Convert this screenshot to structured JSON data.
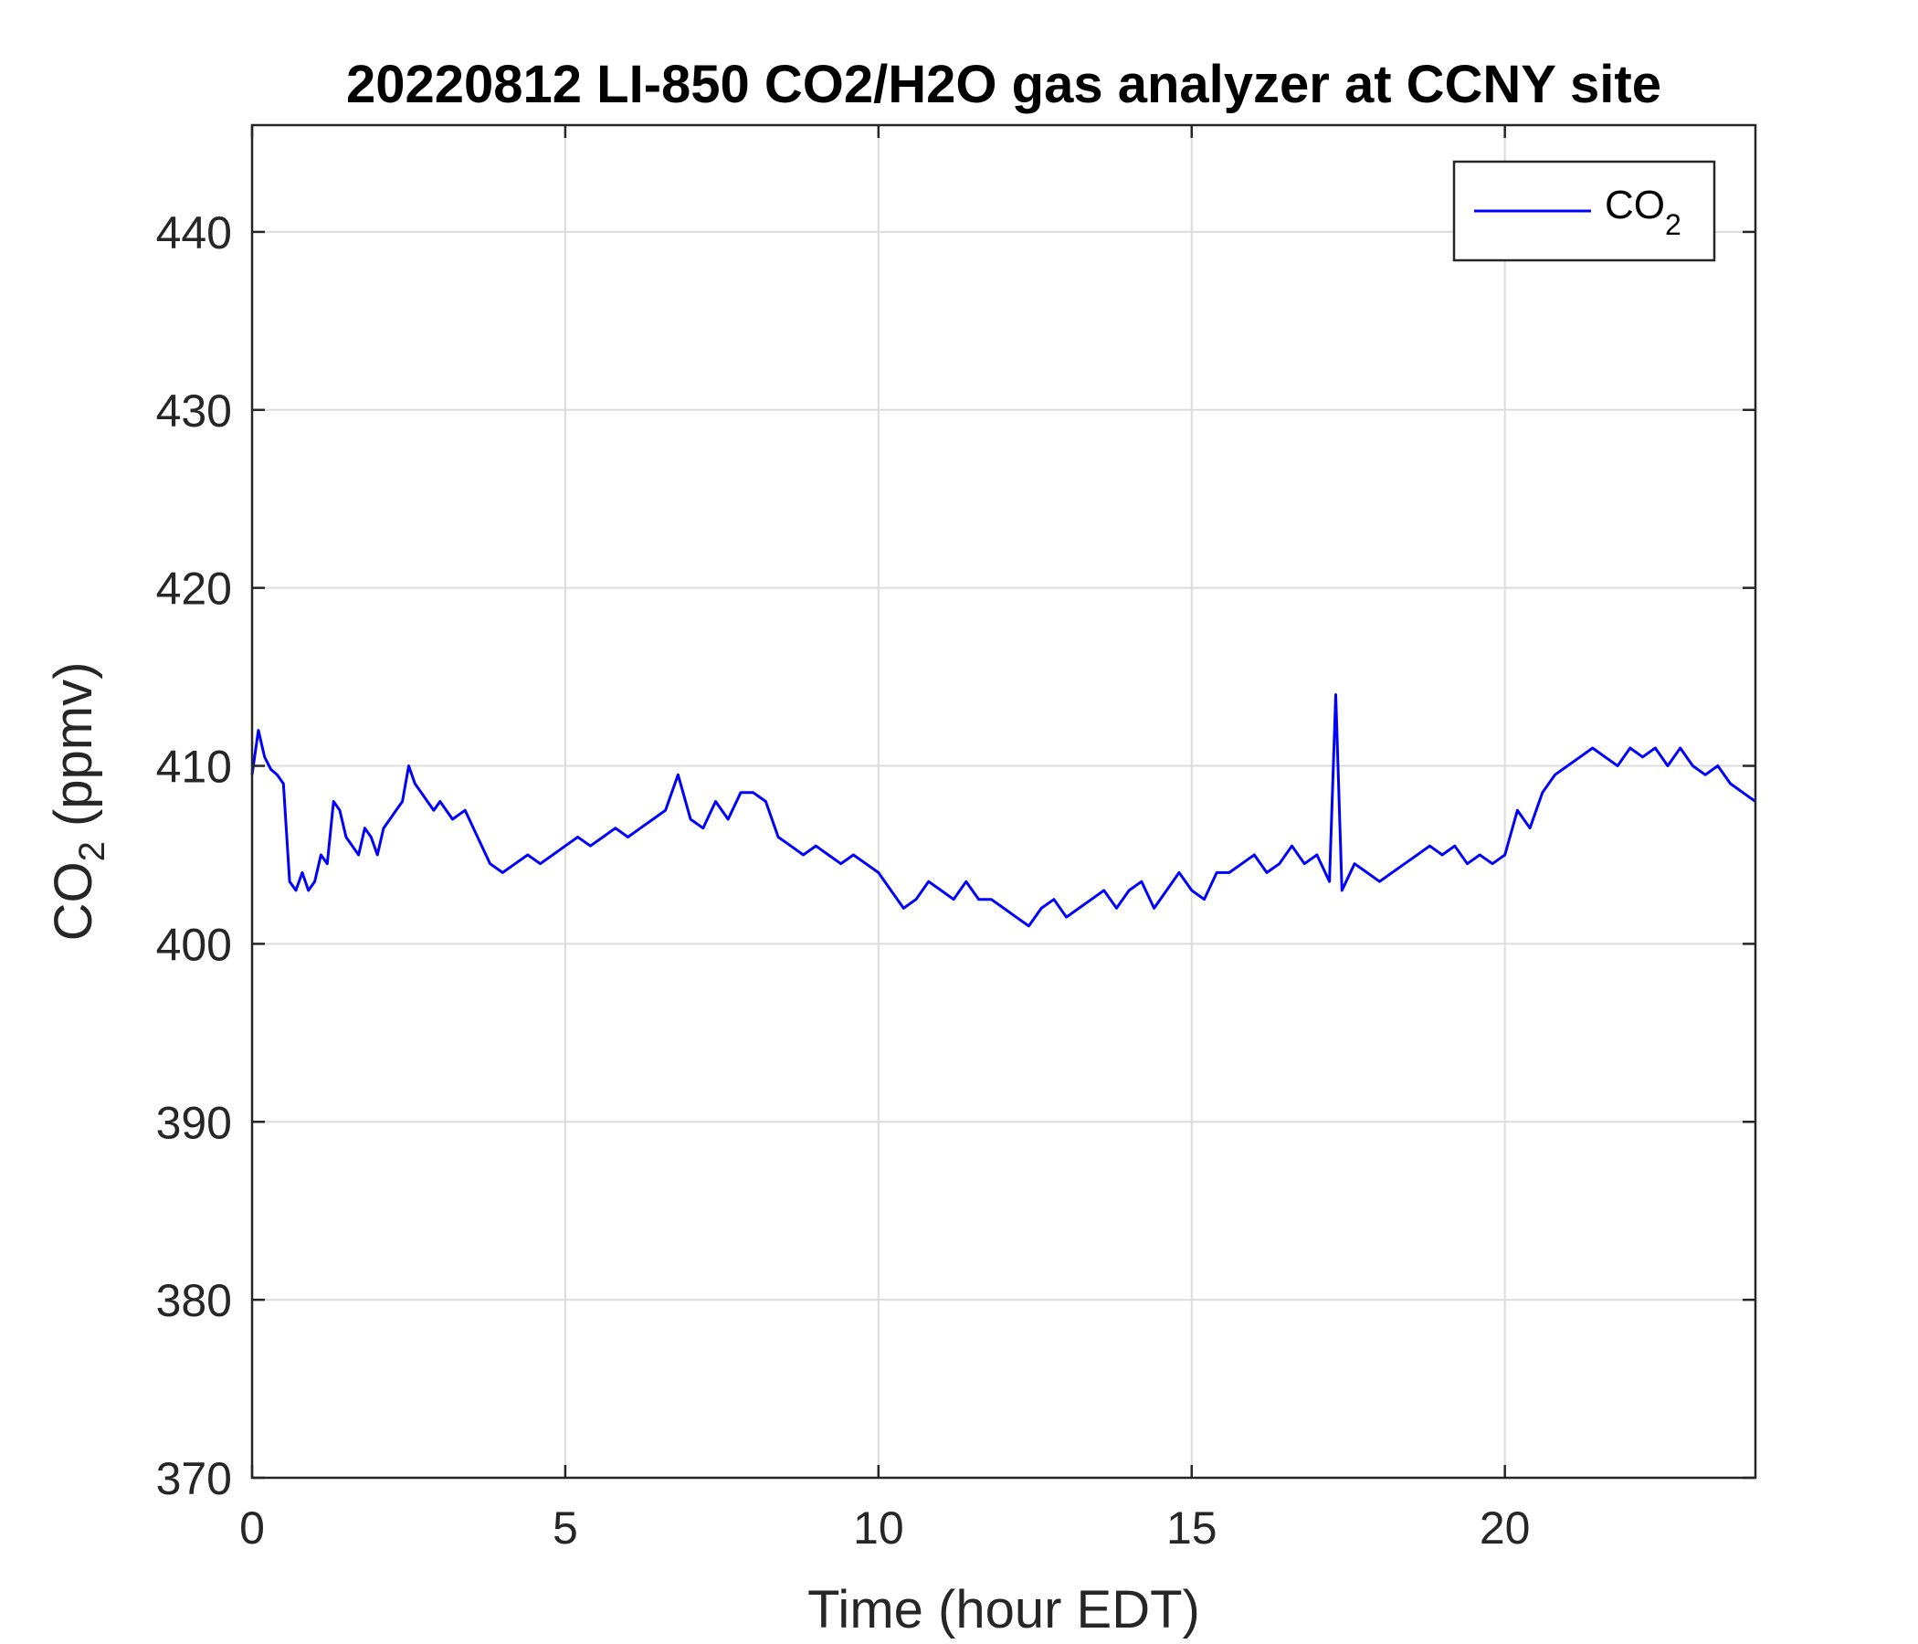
{
  "chart_data": {
    "type": "line",
    "title": "20220812 LI-850 CO2/H2O gas analyzer at CCNY site",
    "xlabel": "Time (hour EDT)",
    "ylabel": {
      "base": "CO",
      "sub": "2",
      "rest": " (ppmv)"
    },
    "xlim": [
      0,
      24
    ],
    "ylim": [
      370,
      446
    ],
    "xticks": [
      0,
      5,
      10,
      15,
      20
    ],
    "yticks": [
      370,
      380,
      390,
      400,
      410,
      420,
      430,
      440
    ],
    "grid": true,
    "legend_position": "top-right",
    "series": [
      {
        "name": {
          "base": "CO",
          "sub": "2"
        },
        "color": "#0000ff",
        "x": [
          0,
          0.1,
          0.2,
          0.3,
          0.4,
          0.5,
          0.6,
          0.7,
          0.8,
          0.9,
          1.0,
          1.1,
          1.2,
          1.3,
          1.4,
          1.5,
          1.6,
          1.7,
          1.8,
          1.9,
          2.0,
          2.1,
          2.2,
          2.3,
          2.4,
          2.5,
          2.6,
          2.7,
          2.8,
          2.9,
          3.0,
          3.2,
          3.4,
          3.6,
          3.8,
          4.0,
          4.2,
          4.4,
          4.6,
          4.8,
          5.0,
          5.2,
          5.4,
          5.6,
          5.8,
          6.0,
          6.2,
          6.4,
          6.6,
          6.8,
          7.0,
          7.2,
          7.4,
          7.6,
          7.8,
          8.0,
          8.2,
          8.4,
          8.6,
          8.8,
          9.0,
          9.2,
          9.4,
          9.6,
          9.8,
          10.0,
          10.2,
          10.4,
          10.6,
          10.8,
          11.0,
          11.2,
          11.4,
          11.6,
          11.8,
          12.0,
          12.2,
          12.4,
          12.6,
          12.8,
          13.0,
          13.2,
          13.4,
          13.6,
          13.8,
          14.0,
          14.2,
          14.4,
          14.6,
          14.8,
          15.0,
          15.2,
          15.4,
          15.6,
          15.8,
          16.0,
          16.2,
          16.4,
          16.6,
          16.8,
          17.0,
          17.2,
          17.3,
          17.4,
          17.6,
          17.8,
          18.0,
          18.2,
          18.4,
          18.6,
          18.8,
          19.0,
          19.2,
          19.4,
          19.6,
          19.8,
          20.0,
          20.2,
          20.4,
          20.6,
          20.8,
          21.0,
          21.2,
          21.4,
          21.6,
          21.8,
          22.0,
          22.2,
          22.4,
          22.6,
          22.8,
          23.0,
          23.2,
          23.4,
          23.6,
          23.8,
          24.0
        ],
        "values": [
          409.5,
          412.0,
          410.5,
          409.8,
          409.5,
          409.0,
          403.5,
          403.0,
          404.0,
          403.0,
          403.5,
          405.0,
          404.5,
          408.0,
          407.5,
          406.0,
          405.5,
          405.0,
          406.5,
          406.0,
          405.0,
          406.5,
          407.0,
          407.5,
          408.0,
          410.0,
          409.0,
          408.5,
          408.0,
          407.5,
          408.0,
          407.0,
          407.5,
          406.0,
          404.5,
          404.0,
          404.5,
          405.0,
          404.5,
          405.0,
          405.5,
          406.0,
          405.5,
          406.0,
          406.5,
          406.0,
          406.5,
          407.0,
          407.5,
          409.5,
          407.0,
          406.5,
          408.0,
          407.0,
          408.5,
          408.5,
          408.0,
          406.0,
          405.5,
          405.0,
          405.5,
          405.0,
          404.5,
          405.0,
          404.5,
          404.0,
          403.0,
          402.0,
          402.5,
          403.5,
          403.0,
          402.5,
          403.5,
          402.5,
          402.5,
          402.0,
          401.5,
          401.0,
          402.0,
          402.5,
          401.5,
          402.0,
          402.5,
          403.0,
          402.0,
          403.0,
          403.5,
          402.0,
          403.0,
          404.0,
          403.0,
          402.5,
          404.0,
          404.0,
          404.5,
          405.0,
          404.0,
          404.5,
          405.5,
          404.5,
          405.0,
          403.5,
          414.0,
          403.0,
          404.5,
          404.0,
          403.5,
          404.0,
          404.5,
          405.0,
          405.5,
          405.0,
          405.5,
          404.5,
          405.0,
          404.5,
          405.0,
          407.5,
          406.5,
          408.5,
          409.5,
          410.0,
          410.5,
          411.0,
          410.5,
          410.0,
          411.0,
          410.5,
          411.0,
          410.0,
          411.0,
          410.0,
          409.5,
          410.0,
          409.0,
          408.5,
          408.0
        ]
      }
    ]
  }
}
